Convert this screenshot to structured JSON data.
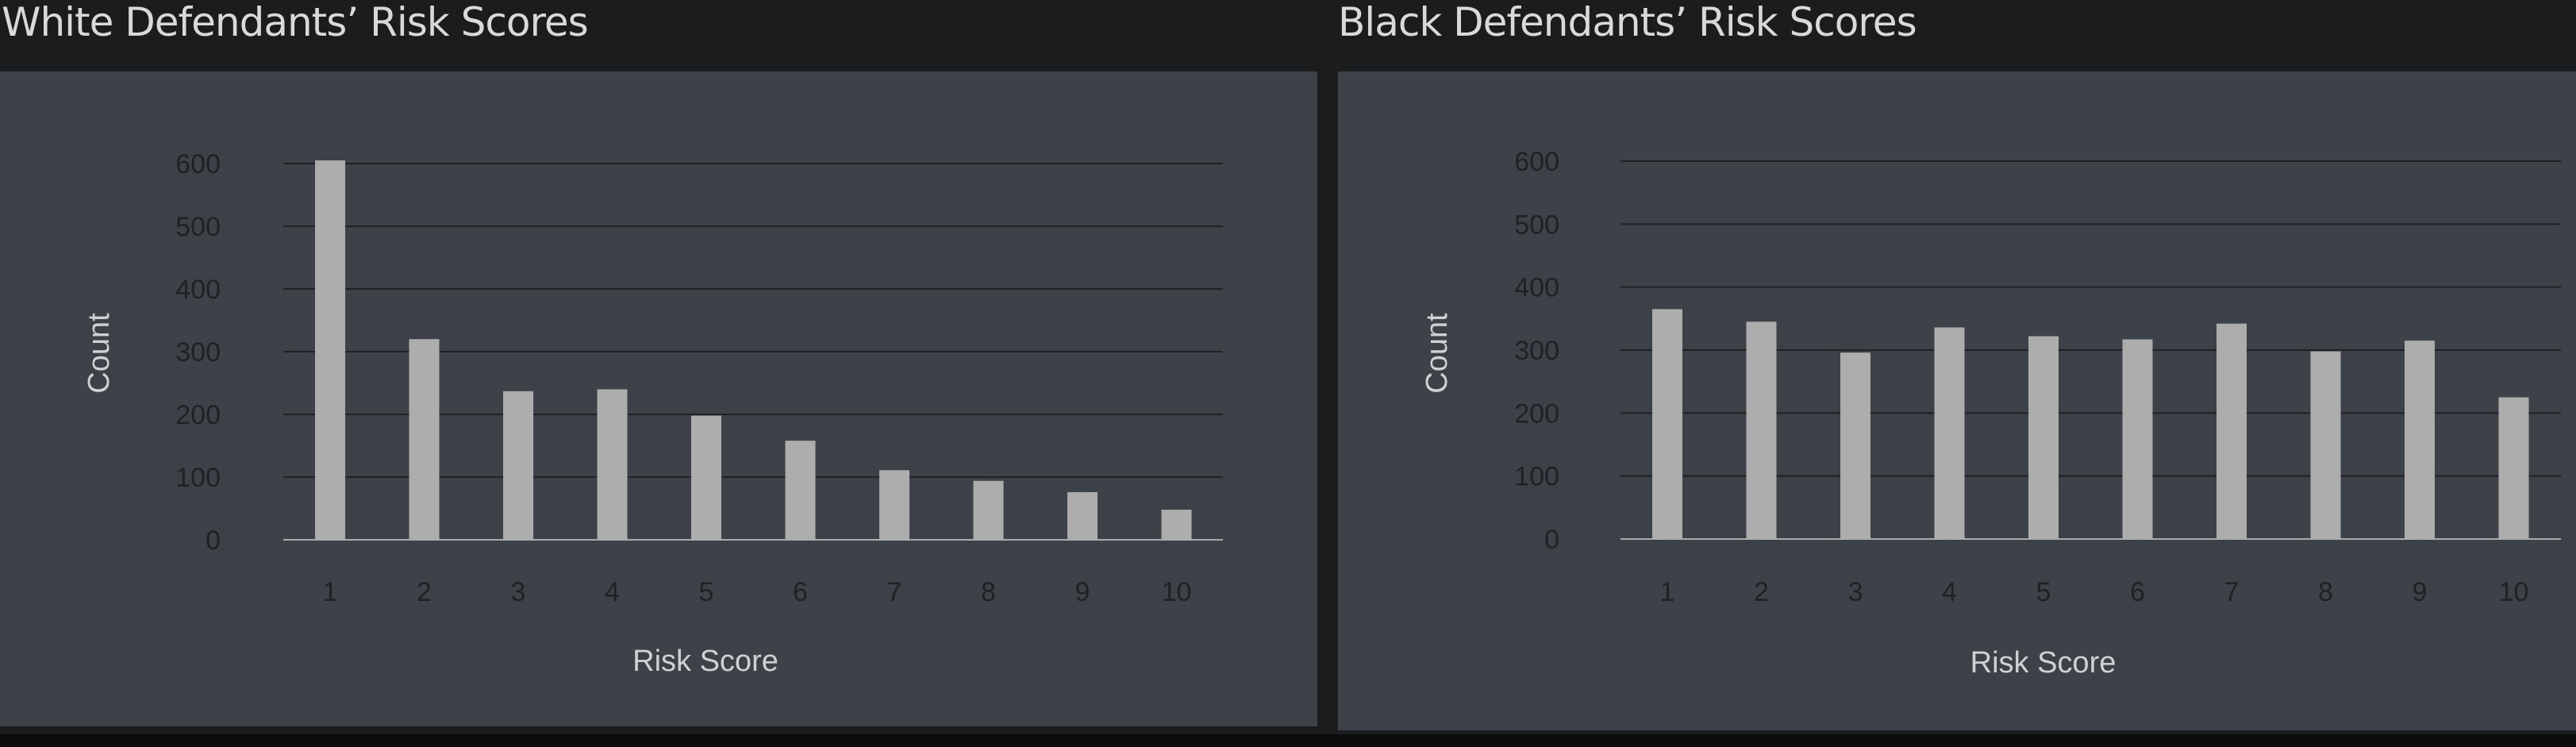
{
  "chart_data": [
    {
      "type": "bar",
      "title": "White Defendants’ Risk Scores",
      "xlabel": "Risk Score",
      "ylabel": "Count",
      "categories": [
        "1",
        "2",
        "3",
        "4",
        "5",
        "6",
        "7",
        "8",
        "9",
        "10"
      ],
      "values": [
        605,
        320,
        237,
        240,
        198,
        158,
        111,
        94,
        76,
        48
      ],
      "ylim": [
        0,
        600
      ],
      "yticks": [
        0,
        100,
        200,
        300,
        400,
        500,
        600
      ],
      "grid": true,
      "colors": {
        "bar": "#adadad",
        "panel": "#3d4249"
      }
    },
    {
      "type": "bar",
      "title": "Black Defendants’ Risk Scores",
      "xlabel": "Risk Score",
      "ylabel": "Count",
      "categories": [
        "1",
        "2",
        "3",
        "4",
        "5",
        "6",
        "7",
        "8",
        "9",
        "10"
      ],
      "values": [
        365,
        345,
        296,
        336,
        322,
        317,
        342,
        298,
        315,
        225
      ],
      "ylim": [
        0,
        600
      ],
      "yticks": [
        0,
        100,
        200,
        300,
        400,
        500,
        600
      ],
      "grid": true,
      "colors": {
        "bar": "#adadad",
        "panel": "#3d4249"
      }
    }
  ]
}
